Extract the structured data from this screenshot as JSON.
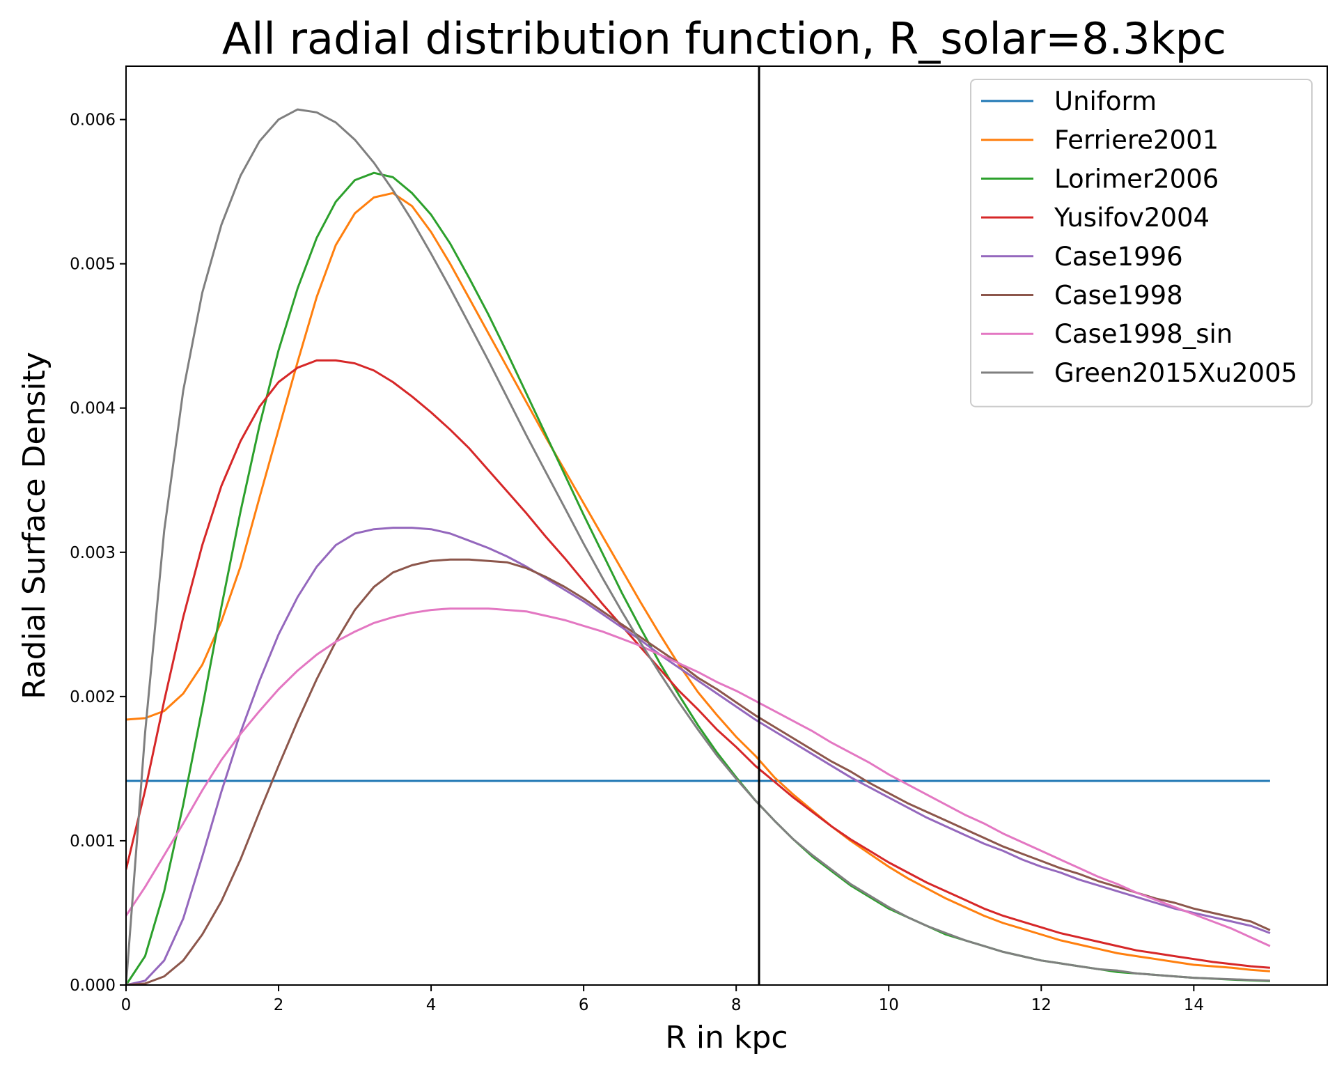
{
  "chart_data": {
    "type": "line",
    "title": "All radial distribution function, R_solar=8.3kpc",
    "xlabel": "R in kpc",
    "ylabel": "Radial Surface Density",
    "xlim": [
      0,
      15.75
    ],
    "ylim": [
      0,
      0.00637
    ],
    "x_ticks": [
      "0",
      "2",
      "4",
      "6",
      "8",
      "10",
      "12",
      "14"
    ],
    "y_ticks": [
      "0.000",
      "0.001",
      "0.002",
      "0.003",
      "0.004",
      "0.005",
      "0.006"
    ],
    "grid": false,
    "legend_position": "upper right",
    "vertical_line": {
      "x": 8.3,
      "color": "#000000"
    },
    "x": [
      0,
      0.25,
      0.5,
      0.75,
      1,
      1.25,
      1.5,
      1.75,
      2,
      2.25,
      2.5,
      2.75,
      3,
      3.25,
      3.5,
      3.75,
      4,
      4.25,
      4.5,
      4.75,
      5,
      5.25,
      5.5,
      5.75,
      6,
      6.25,
      6.5,
      6.75,
      7,
      7.25,
      7.5,
      7.75,
      8,
      8.25,
      8.5,
      8.75,
      9,
      9.25,
      9.5,
      9.75,
      10,
      10.25,
      10.5,
      10.75,
      11,
      11.25,
      11.5,
      11.75,
      12,
      12.25,
      12.5,
      12.75,
      13,
      13.25,
      13.5,
      13.75,
      14,
      14.25,
      14.5,
      14.75,
      15
    ],
    "series": [
      {
        "name": "Uniform",
        "color": "#1f77b4",
        "values": [
          0.001415,
          0.001415,
          0.001415,
          0.001415,
          0.001415,
          0.001415,
          0.001415,
          0.001415,
          0.001415,
          0.001415,
          0.001415,
          0.001415,
          0.001415,
          0.001415,
          0.001415,
          0.001415,
          0.001415,
          0.001415,
          0.001415,
          0.001415,
          0.001415,
          0.001415,
          0.001415,
          0.001415,
          0.001415,
          0.001415,
          0.001415,
          0.001415,
          0.001415,
          0.001415,
          0.001415,
          0.001415,
          0.001415,
          0.001415,
          0.001415,
          0.001415,
          0.001415,
          0.001415,
          0.001415,
          0.001415,
          0.001415,
          0.001415,
          0.001415,
          0.001415,
          0.001415,
          0.001415,
          0.001415,
          0.001415,
          0.001415,
          0.001415,
          0.001415,
          0.001415,
          0.001415,
          0.001415,
          0.001415,
          0.001415,
          0.001415,
          0.001415,
          0.001415,
          0.001415,
          0.001415
        ]
      },
      {
        "name": "Ferriere2001",
        "color": "#ff7f0e",
        "values": [
          0.00184,
          0.00185,
          0.0019,
          0.00202,
          0.00222,
          0.00252,
          0.0029,
          0.00338,
          0.00385,
          0.00432,
          0.00477,
          0.00513,
          0.00535,
          0.00546,
          0.00549,
          0.0054,
          0.00522,
          0.005,
          0.00476,
          0.00452,
          0.00428,
          0.00404,
          0.0038,
          0.00357,
          0.00334,
          0.00311,
          0.00288,
          0.00265,
          0.00243,
          0.00222,
          0.00203,
          0.00187,
          0.00172,
          0.00159,
          0.00144,
          0.00132,
          0.00121,
          0.0011,
          0.001,
          0.00091,
          0.00082,
          0.00074,
          0.00067,
          0.0006,
          0.00054,
          0.00048,
          0.00043,
          0.00039,
          0.00035,
          0.00031,
          0.00028,
          0.00025,
          0.00022,
          0.0002,
          0.00018,
          0.00016,
          0.00014,
          0.00013,
          0.00012,
          0.000105,
          9.5e-05
        ]
      },
      {
        "name": "Lorimer2006",
        "color": "#2ca02c",
        "values": [
          0.0,
          0.0002,
          0.00065,
          0.00125,
          0.00192,
          0.00262,
          0.00328,
          0.00388,
          0.0044,
          0.00483,
          0.00518,
          0.00543,
          0.00558,
          0.00563,
          0.0056,
          0.00549,
          0.00534,
          0.00514,
          0.0049,
          0.00465,
          0.00438,
          0.0041,
          0.00382,
          0.00354,
          0.00326,
          0.00299,
          0.00272,
          0.00247,
          0.00223,
          0.00201,
          0.0018,
          0.00161,
          0.00144,
          0.00128,
          0.00114,
          0.00101,
          0.00089,
          0.00079,
          0.00069,
          0.00061,
          0.00053,
          0.00047,
          0.00041,
          0.00035,
          0.00031,
          0.00027,
          0.00023,
          0.0002,
          0.00017,
          0.00015,
          0.00013,
          0.00011,
          9e-05,
          8e-05,
          7e-05,
          6e-05,
          5e-05,
          4.4e-05,
          3.7e-05,
          3.2e-05,
          2.7e-05
        ]
      },
      {
        "name": "Yusifov2004",
        "color": "#d62728",
        "values": [
          0.0008,
          0.00135,
          0.00197,
          0.00255,
          0.00305,
          0.00346,
          0.00377,
          0.00401,
          0.00418,
          0.00428,
          0.00433,
          0.00433,
          0.00431,
          0.00426,
          0.00418,
          0.00408,
          0.00397,
          0.00385,
          0.00372,
          0.00357,
          0.00342,
          0.00327,
          0.00311,
          0.00296,
          0.0028,
          0.00264,
          0.00249,
          0.00234,
          0.00219,
          0.00204,
          0.00191,
          0.00177,
          0.00165,
          0.00152,
          0.00141,
          0.0013,
          0.0012,
          0.0011,
          0.00101,
          0.00093,
          0.00085,
          0.00078,
          0.00071,
          0.00065,
          0.00059,
          0.00053,
          0.00048,
          0.00044,
          0.0004,
          0.00036,
          0.00033,
          0.0003,
          0.00027,
          0.00024,
          0.00022,
          0.0002,
          0.00018,
          0.00016,
          0.000145,
          0.00013,
          0.00012
        ]
      },
      {
        "name": "Case1996",
        "color": "#9467bd",
        "values": [
          0.0,
          3e-05,
          0.00017,
          0.00046,
          0.00089,
          0.00134,
          0.00175,
          0.00211,
          0.00243,
          0.00269,
          0.0029,
          0.00305,
          0.00313,
          0.00316,
          0.00317,
          0.00317,
          0.00316,
          0.00313,
          0.00308,
          0.00303,
          0.00297,
          0.0029,
          0.00282,
          0.00274,
          0.00266,
          0.00257,
          0.00248,
          0.00239,
          0.00229,
          0.0022,
          0.00211,
          0.00202,
          0.00193,
          0.00184,
          0.00176,
          0.00168,
          0.0016,
          0.00152,
          0.00144,
          0.00137,
          0.0013,
          0.00123,
          0.00116,
          0.0011,
          0.00104,
          0.00098,
          0.00093,
          0.00087,
          0.00082,
          0.00078,
          0.00073,
          0.00069,
          0.00065,
          0.00061,
          0.00057,
          0.00053,
          0.0005,
          0.00047,
          0.00044,
          0.00041,
          0.00036
        ]
      },
      {
        "name": "Case1998",
        "color": "#8c564b",
        "values": [
          0.0,
          1e-05,
          6e-05,
          0.00017,
          0.00035,
          0.00058,
          0.00087,
          0.0012,
          0.00152,
          0.00183,
          0.00212,
          0.00238,
          0.0026,
          0.00276,
          0.00286,
          0.00291,
          0.00294,
          0.00295,
          0.00295,
          0.00294,
          0.00293,
          0.00289,
          0.00283,
          0.00276,
          0.00268,
          0.00259,
          0.0025,
          0.00241,
          0.00232,
          0.00223,
          0.00213,
          0.00205,
          0.00196,
          0.00187,
          0.00179,
          0.00171,
          0.00163,
          0.00155,
          0.00148,
          0.0014,
          0.00133,
          0.00126,
          0.0012,
          0.00114,
          0.00108,
          0.00102,
          0.00096,
          0.00091,
          0.00086,
          0.00081,
          0.00077,
          0.00072,
          0.00068,
          0.00064,
          0.0006,
          0.00057,
          0.00053,
          0.0005,
          0.00047,
          0.00044,
          0.00038
        ]
      },
      {
        "name": "Case1998_sin",
        "color": "#e377c2",
        "values": [
          0.00048,
          0.00068,
          0.0009,
          0.00112,
          0.00135,
          0.00156,
          0.00174,
          0.0019,
          0.00205,
          0.00218,
          0.00229,
          0.00238,
          0.00245,
          0.00251,
          0.00255,
          0.00258,
          0.0026,
          0.00261,
          0.00261,
          0.00261,
          0.0026,
          0.00259,
          0.00256,
          0.00253,
          0.00249,
          0.00245,
          0.0024,
          0.00235,
          0.00229,
          0.00223,
          0.00217,
          0.0021,
          0.00204,
          0.00197,
          0.0019,
          0.00183,
          0.00176,
          0.00168,
          0.00161,
          0.00154,
          0.00146,
          0.00139,
          0.00132,
          0.00125,
          0.00118,
          0.00112,
          0.00105,
          0.00099,
          0.00093,
          0.00087,
          0.00081,
          0.00075,
          0.0007,
          0.00064,
          0.00059,
          0.00054,
          0.00049,
          0.00044,
          0.00039,
          0.00033,
          0.00027
        ]
      },
      {
        "name": "Green2015Xu2005",
        "color": "#7f7f7f",
        "values": [
          0.0,
          0.00175,
          0.00315,
          0.00412,
          0.0048,
          0.00527,
          0.00561,
          0.00585,
          0.006,
          0.00607,
          0.00605,
          0.00598,
          0.00586,
          0.0057,
          0.00551,
          0.0053,
          0.00507,
          0.00483,
          0.00458,
          0.00433,
          0.00407,
          0.00381,
          0.00356,
          0.00331,
          0.00306,
          0.00282,
          0.00259,
          0.00237,
          0.00216,
          0.00196,
          0.00177,
          0.00159,
          0.00143,
          0.00128,
          0.00114,
          0.00101,
          0.0009,
          0.0008,
          0.0007,
          0.00062,
          0.00054,
          0.00047,
          0.00041,
          0.00036,
          0.00031,
          0.00027,
          0.00023,
          0.0002,
          0.00017,
          0.00015,
          0.00013,
          0.00011,
          0.0001,
          8e-05,
          7e-05,
          6e-05,
          5e-05,
          4.5e-05,
          4e-05,
          3.5e-05,
          3e-05
        ]
      }
    ]
  }
}
